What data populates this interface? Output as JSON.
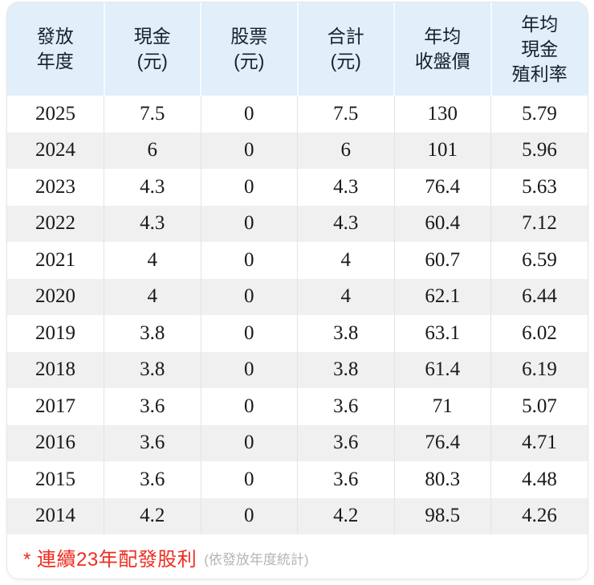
{
  "table": {
    "columns": [
      {
        "id": "payout-year",
        "label": "發放\n年度"
      },
      {
        "id": "cash-dividend",
        "label": "現金\n(元)"
      },
      {
        "id": "stock-dividend",
        "label": "股票\n(元)"
      },
      {
        "id": "total-dividend",
        "label": "合計\n(元)"
      },
      {
        "id": "avg-close-price",
        "label": "年均\n收盤價"
      },
      {
        "id": "avg-cash-yield",
        "label": "年均\n現金\n殖利率"
      }
    ],
    "rows": [
      [
        "2025",
        "7.5",
        "0",
        "7.5",
        "130",
        "5.79"
      ],
      [
        "2024",
        "6",
        "0",
        "6",
        "101",
        "5.96"
      ],
      [
        "2023",
        "4.3",
        "0",
        "4.3",
        "76.4",
        "5.63"
      ],
      [
        "2022",
        "4.3",
        "0",
        "4.3",
        "60.4",
        "7.12"
      ],
      [
        "2021",
        "4",
        "0",
        "4",
        "60.7",
        "6.59"
      ],
      [
        "2020",
        "4",
        "0",
        "4",
        "62.1",
        "6.44"
      ],
      [
        "2019",
        "3.8",
        "0",
        "3.8",
        "63.1",
        "6.02"
      ],
      [
        "2018",
        "3.8",
        "0",
        "3.8",
        "61.4",
        "6.19"
      ],
      [
        "2017",
        "3.6",
        "0",
        "3.6",
        "71",
        "5.07"
      ],
      [
        "2016",
        "3.6",
        "0",
        "3.6",
        "76.4",
        "4.71"
      ],
      [
        "2015",
        "3.6",
        "0",
        "3.6",
        "80.3",
        "4.48"
      ],
      [
        "2014",
        "4.2",
        "0",
        "4.2",
        "98.5",
        "4.26"
      ]
    ]
  },
  "footer": {
    "note": "* 連續23年配發股利",
    "note_sub": "(依發放年度統計)"
  },
  "colors": {
    "header_bg": "#e1effa",
    "row_alt_bg": "#f0f0f0",
    "note_red": "#ee2c1f",
    "note_gray": "#b5b5b5",
    "card_border": "#e7e7e7"
  }
}
